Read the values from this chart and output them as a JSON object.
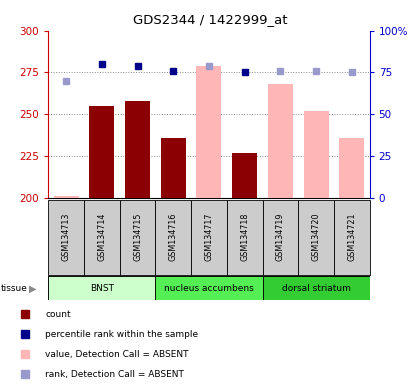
{
  "title": "GDS2344 / 1422999_at",
  "samples": [
    "GSM134713",
    "GSM134714",
    "GSM134715",
    "GSM134716",
    "GSM134717",
    "GSM134718",
    "GSM134719",
    "GSM134720",
    "GSM134721"
  ],
  "bar_values_present": [
    null,
    255,
    258,
    236,
    null,
    227,
    null,
    null,
    null
  ],
  "bar_values_absent": [
    201,
    null,
    null,
    null,
    279,
    null,
    268,
    252,
    236
  ],
  "rank_dots_present": [
    null,
    80,
    79,
    76,
    null,
    75,
    null,
    null,
    null
  ],
  "rank_dots_absent": [
    70,
    null,
    null,
    null,
    79,
    null,
    76,
    76,
    75
  ],
  "ylim_left": [
    200,
    300
  ],
  "ylim_right": [
    0,
    100
  ],
  "yticks_left": [
    200,
    225,
    250,
    275,
    300
  ],
  "yticks_right": [
    0,
    25,
    50,
    75,
    100
  ],
  "tissue_groups": [
    {
      "label": "BNST",
      "start": 0,
      "end": 3,
      "color": "#ccffcc"
    },
    {
      "label": "nucleus accumbens",
      "start": 3,
      "end": 6,
      "color": "#55ee55"
    },
    {
      "label": "dorsal striatum",
      "start": 6,
      "end": 9,
      "color": "#33cc33"
    }
  ],
  "left_axis_color": "#cc0000",
  "right_axis_color": "#0000cc",
  "bar_width": 0.7,
  "grid_dotted_color": "#888888",
  "absent_bar_color": "#ffb6b6",
  "absent_rank_color": "#9999cc",
  "present_bar_color": "#8b0000",
  "present_rank_color": "#00008b",
  "sample_box_color": "#cccccc",
  "plot_bg": "#ffffff",
  "border_color": "#000000"
}
